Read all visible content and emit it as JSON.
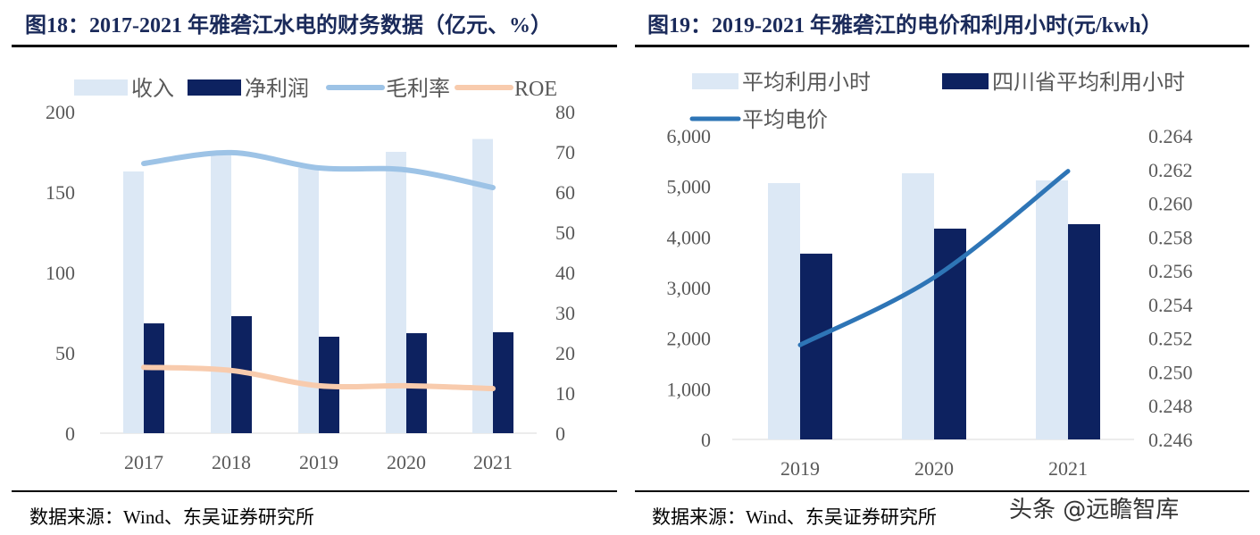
{
  "left": {
    "title": "图18：2017-2021 年雅砻江水电的财务数据（亿元、%）",
    "source": "数据来源：Wind、东吴证券研究所"
  },
  "right": {
    "title": "图19：2019-2021 年雅砻江的电价和利用小时(元/kwh）",
    "source": "数据来源：Wind、东吴证券研究所"
  },
  "watermark": "头条 @远瞻智库",
  "chart_data": [
    {
      "type": "bar",
      "categories": [
        "2017",
        "2018",
        "2019",
        "2020",
        "2021"
      ],
      "ylim": [
        0,
        200
      ],
      "y2lim": [
        0,
        80
      ],
      "yticks": [
        "0",
        "50",
        "100",
        "150",
        "200"
      ],
      "y2ticks": [
        "0",
        "10",
        "20",
        "30",
        "40",
        "50",
        "60",
        "70",
        "80"
      ],
      "legend_placement": "top",
      "grid": false,
      "series": [
        {
          "name": "收入",
          "type": "bar",
          "axis": "left",
          "color": "#dce8f5",
          "values": [
            162.8,
            174,
            165,
            175,
            183
          ]
        },
        {
          "name": "净利润",
          "type": "bar",
          "axis": "left",
          "color": "#0d2260",
          "values": [
            68.3,
            72.8,
            60,
            62.2,
            62.8
          ]
        },
        {
          "name": "毛利率",
          "type": "line",
          "axis": "right",
          "color": "#9dc3e6",
          "values": [
            67.1,
            69.8,
            66,
            65.5,
            61.1
          ]
        },
        {
          "name": "ROE",
          "type": "line",
          "axis": "right",
          "color": "#f8cbad",
          "values": [
            16.4,
            15.6,
            11.8,
            11.8,
            11.1
          ]
        }
      ]
    },
    {
      "type": "bar",
      "categories": [
        "2019",
        "2020",
        "2021"
      ],
      "ylim": [
        0,
        6000
      ],
      "y2lim": [
        0.246,
        0.264
      ],
      "yticks": [
        "0",
        "1,000",
        "2,000",
        "3,000",
        "4,000",
        "5,000",
        "6,000"
      ],
      "y2ticks": [
        "0.246",
        "0.248",
        "0.250",
        "0.252",
        "0.254",
        "0.256",
        "0.258",
        "0.260",
        "0.262",
        "0.264"
      ],
      "legend_placement": "top",
      "grid": false,
      "series": [
        {
          "name": "平均利用小时",
          "type": "bar",
          "axis": "left",
          "color": "#dce8f5",
          "values": [
            5065,
            5259,
            5118
          ]
        },
        {
          "name": "四川省平均利用小时",
          "type": "bar",
          "axis": "left",
          "color": "#0d2260",
          "values": [
            3670,
            4165,
            4253
          ]
        },
        {
          "name": "平均电价",
          "type": "line",
          "axis": "right",
          "color": "#2e75b6",
          "values": [
            0.2516,
            0.2556,
            0.2619
          ]
        }
      ]
    }
  ]
}
